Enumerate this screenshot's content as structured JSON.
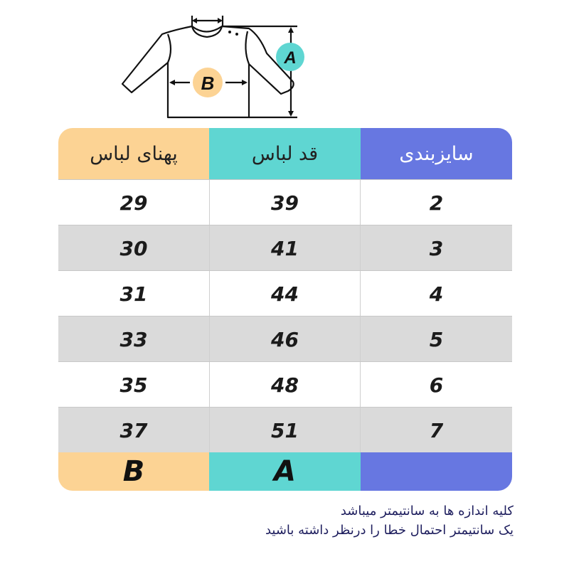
{
  "diagram": {
    "label_a": "A",
    "label_b": "B",
    "color_a": "#5fd6d2",
    "color_b": "#fcd394"
  },
  "table": {
    "headers": {
      "width": "پهنای لباس",
      "length": "قد لباس",
      "size": "سایزبندی"
    },
    "rows": [
      {
        "width": "29",
        "length": "39",
        "size": "2"
      },
      {
        "width": "30",
        "length": "41",
        "size": "3"
      },
      {
        "width": "31",
        "length": "44",
        "size": "4"
      },
      {
        "width": "33",
        "length": "46",
        "size": "5"
      },
      {
        "width": "35",
        "length": "48",
        "size": "6"
      },
      {
        "width": "37",
        "length": "51",
        "size": "7"
      }
    ],
    "footer": {
      "width": "B",
      "length": "A",
      "size": ""
    },
    "colors": {
      "peach": "#fcd394",
      "teal": "#5fd6d2",
      "blue": "#6777e1",
      "gray_row": "#dadada"
    }
  },
  "notes": [
    "کلیه اندازه ها به سانتیمتر میباشد",
    "یک سانتیمتر احتمال خطا را درنظر داشته باشید"
  ]
}
